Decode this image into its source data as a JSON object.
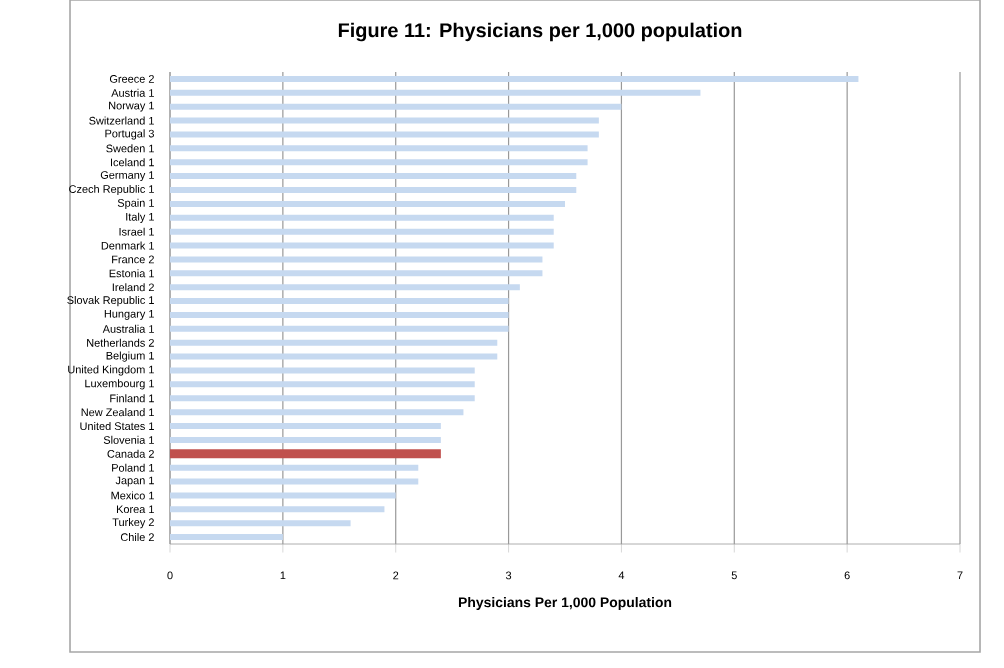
{
  "chart_data": {
    "type": "bar",
    "orientation": "horizontal",
    "title": "Figure 11: Physicians per 1,000 population",
    "xlabel": "Physicians Per 1,000 Population",
    "categories": [
      "Greece 2",
      "Austria 1",
      "Norway 1",
      "Switzerland 1",
      "Portugal 3",
      "Sweden 1",
      "Iceland 1",
      "Germany 1",
      "Czech Republic 1",
      "Spain 1",
      "Italy 1",
      "Israel 1",
      "Denmark 1",
      "France 2",
      "Estonia 1",
      "Ireland 2",
      "Slovak Republic 1",
      "Hungary 1",
      "Australia 1",
      "Netherlands 2",
      "Belgium 1",
      "United Kingdom 1",
      "Luxembourg 1",
      "Finland 1",
      "New Zealand 1",
      "United States 1",
      "Slovenia 1",
      "Canada 2",
      "Poland 1",
      "Japan 1",
      "Mexico 1",
      "Korea 1",
      "Turkey 2",
      "Chile 2"
    ],
    "values": [
      6.1,
      4.7,
      4.0,
      3.8,
      3.8,
      3.7,
      3.7,
      3.6,
      3.6,
      3.5,
      3.4,
      3.4,
      3.4,
      3.3,
      3.3,
      3.1,
      3.0,
      3.0,
      3.0,
      2.9,
      2.9,
      2.7,
      2.7,
      2.7,
      2.6,
      2.4,
      2.4,
      2.4,
      2.2,
      2.2,
      2.0,
      1.9,
      1.6,
      1.0
    ],
    "colors": [
      "#c6d9f0",
      "#c6d9f0",
      "#c6d9f0",
      "#c6d9f0",
      "#c6d9f0",
      "#c6d9f0",
      "#c6d9f0",
      "#c6d9f0",
      "#c6d9f0",
      "#c6d9f0",
      "#c6d9f0",
      "#c6d9f0",
      "#c6d9f0",
      "#c6d9f0",
      "#c6d9f0",
      "#c6d9f0",
      "#c6d9f0",
      "#c6d9f0",
      "#c6d9f0",
      "#c6d9f0",
      "#c6d9f0",
      "#c6d9f0",
      "#c6d9f0",
      "#c6d9f0",
      "#c6d9f0",
      "#c6d9f0",
      "#c6d9f0",
      "#c0504d",
      "#c6d9f0",
      "#c6d9f0",
      "#c6d9f0",
      "#c6d9f0",
      "#c6d9f0",
      "#c6d9f0"
    ],
    "xlim": [
      0,
      7
    ],
    "xticks": [
      0,
      1,
      2,
      3,
      4,
      5,
      6,
      7
    ],
    "grid": "x"
  }
}
